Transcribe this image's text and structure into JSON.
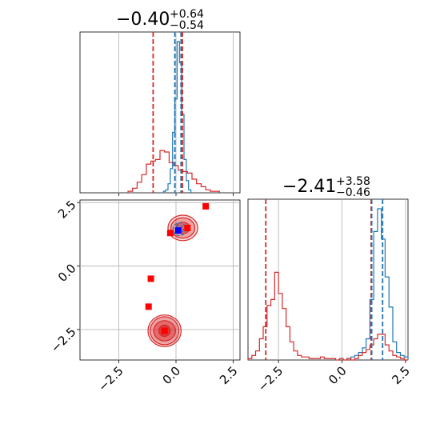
{
  "chart_data": [
    {
      "type": "histogram",
      "panel": "top-left",
      "title": {
        "median": "−0.40",
        "plus": "+0.64",
        "minus": "−0.54"
      },
      "xlim": [
        -4.2,
        2.8
      ],
      "grid": true,
      "series": [
        {
          "color": "#1f77b4",
          "edges": [
            -0.65,
            -0.55,
            -0.45,
            -0.35,
            -0.25,
            -0.15,
            -0.05,
            0.05,
            0.15,
            0.25,
            0.35,
            0.45,
            0.55,
            0.65
          ],
          "counts": [
            0,
            1,
            2,
            6,
            16,
            40,
            62,
            100,
            86,
            52,
            22,
            8,
            2
          ]
        },
        {
          "color": "#d62728",
          "edges": [
            -2.1,
            -1.9,
            -1.7,
            -1.5,
            -1.3,
            -1.1,
            -0.9,
            -0.7,
            -0.5,
            -0.3,
            -0.1,
            0.1,
            0.3,
            0.5,
            0.7,
            0.9,
            1.1,
            1.3,
            1.5,
            1.7,
            1.9
          ],
          "counts": [
            1,
            3,
            7,
            12,
            19,
            21,
            22,
            28,
            27,
            20,
            18,
            15,
            14,
            13,
            9,
            6,
            4,
            2,
            1,
            1
          ]
        }
      ],
      "vlines": [
        {
          "x": -1.0,
          "color": "#d62728"
        },
        {
          "x": -0.05,
          "color": "#1f77b4"
        },
        {
          "x": 0.22,
          "color": "#1f77b4"
        },
        {
          "x": 0.28,
          "color": "#d62728"
        }
      ]
    },
    {
      "type": "scatter",
      "panel": "bottom-left",
      "xlim": [
        -4.2,
        2.8
      ],
      "ylim": [
        -3.7,
        2.6
      ],
      "grid": true,
      "x_ticks": [
        "−2.5",
        "0.0",
        "2.5"
      ],
      "y_ticks": [
        "2.5",
        "0.0",
        "−2.5"
      ],
      "red_points": [
        {
          "x": 1.3,
          "y": 2.35
        },
        {
          "x": -0.25,
          "y": 1.3
        },
        {
          "x": 0.5,
          "y": 1.5
        },
        {
          "x": -1.1,
          "y": -0.5
        },
        {
          "x": -1.2,
          "y": -1.6
        },
        {
          "x": -0.5,
          "y": -2.55
        }
      ],
      "blue_points": [
        {
          "x": 0.1,
          "y": 1.4
        }
      ],
      "red_contours": [
        {
          "cx": -0.5,
          "cy": -2.55,
          "rx": [
            1.45,
            1.25,
            0.95,
            0.5
          ],
          "ry": [
            1.25,
            1.1,
            0.8,
            0.45
          ]
        },
        {
          "cx": 0.3,
          "cy": 1.5,
          "rx": [
            1.3,
            1.05,
            0.6
          ],
          "ry": [
            1.0,
            0.8,
            0.45
          ]
        }
      ],
      "blue_contours": [
        {
          "cx": 0.15,
          "cy": 1.45,
          "rx": [
            0.55,
            0.35
          ],
          "ry": [
            0.5,
            0.3
          ]
        }
      ]
    },
    {
      "type": "histogram",
      "panel": "bottom-right",
      "title": {
        "median": "−2.41",
        "plus": "+3.58",
        "minus": "−0.46"
      },
      "xlim": [
        -3.7,
        2.6
      ],
      "grid": true,
      "x_ticks": [
        "−2.5",
        "0.0",
        "2.5"
      ],
      "series": [
        {
          "color": "#1f77b4",
          "edges": [
            0.2,
            0.35,
            0.5,
            0.65,
            0.8,
            0.95,
            1.1,
            1.25,
            1.4,
            1.55,
            1.7,
            1.85,
            2.0,
            2.15,
            2.3,
            2.45,
            2.6
          ],
          "counts": [
            1,
            2,
            3,
            5,
            8,
            14,
            40,
            85,
            100,
            80,
            55,
            35,
            12,
            5,
            3,
            2
          ]
        },
        {
          "color": "#d62728",
          "edges": [
            -3.7,
            -3.55,
            -3.4,
            -3.25,
            -3.1,
            -2.95,
            -2.8,
            -2.65,
            -2.5,
            -2.35,
            -2.2,
            -2.05,
            -1.9,
            -1.75,
            -1.6,
            -1.45,
            -1.3,
            -1.15,
            -1.0,
            -0.85,
            -0.7,
            -0.55,
            -0.4,
            -0.25,
            -0.1,
            0.05,
            0.2,
            0.35,
            0.5,
            0.65,
            0.8,
            0.95,
            1.1,
            1.25,
            1.4,
            1.55,
            1.7,
            1.85,
            2.0,
            2.15,
            2.3,
            2.45,
            2.6
          ],
          "counts": [
            1,
            3,
            6,
            14,
            22,
            36,
            40,
            58,
            44,
            34,
            22,
            12,
            6,
            3,
            2,
            2,
            1,
            1,
            1,
            2,
            1,
            1,
            1,
            0,
            1,
            0,
            1,
            0,
            1,
            3,
            5,
            7,
            10,
            14,
            17,
            17,
            10,
            6,
            3,
            2,
            1,
            0
          ]
        }
      ],
      "vlines": [
        {
          "x": -3.0,
          "color": "#d62728"
        },
        {
          "x": 1.15,
          "color": "#d62728"
        },
        {
          "x": 1.17,
          "color": "#1f77b4"
        },
        {
          "x": 1.6,
          "color": "#1f77b4"
        }
      ]
    }
  ]
}
